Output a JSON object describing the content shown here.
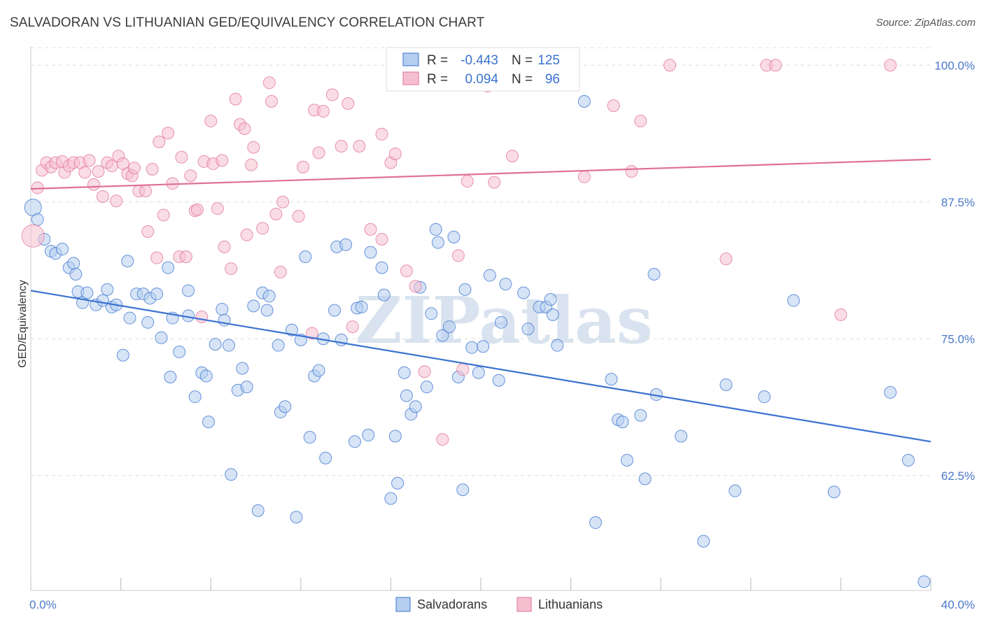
{
  "title": "SALVADORAN VS LITHUANIAN GED/EQUIVALENCY CORRELATION CHART",
  "source": "Source: ZipAtlas.com",
  "watermark": "ZIPatlas",
  "colors": {
    "blue": "#3a72d0",
    "blue_fill": "#b5cdee",
    "pink": "#e07098",
    "pink_fill": "#f5bfd0",
    "axis_label": "#4a78c8",
    "grid": "#dddddd"
  },
  "legend": {
    "rows": [
      {
        "r_label": "R =",
        "r_value": "-0.443",
        "n_label": "N =",
        "n_value": "125"
      },
      {
        "r_label": "R =",
        "r_value": "0.094",
        "n_label": "N =",
        "n_value": "96"
      }
    ]
  },
  "chart_data": {
    "type": "scatter",
    "title": "SALVADORAN VS LITHUANIAN GED/EQUIVALENCY CORRELATION CHART",
    "xlabel": "",
    "ylabel": "GED/Equivalency",
    "xlim": [
      0,
      40
    ],
    "ylim": [
      52,
      102
    ],
    "x_tick_labels": [
      "0.0%",
      "40.0%"
    ],
    "y_ticks": [
      62.5,
      75.0,
      87.5,
      100.0
    ],
    "y_tick_labels": [
      "62.5%",
      "75.0%",
      "87.5%",
      "100.0%"
    ],
    "grid": "horizontal dashed",
    "series": [
      {
        "name": "Salvadorans",
        "trend": {
          "x": [
            0,
            40
          ],
          "y": [
            79.4,
            65.6
          ]
        },
        "points": [
          [
            0.1,
            87.0
          ],
          [
            0.3,
            85.9
          ],
          [
            0.6,
            84.1
          ],
          [
            0.9,
            83.0
          ],
          [
            1.1,
            82.8
          ],
          [
            1.4,
            83.2
          ],
          [
            1.7,
            81.5
          ],
          [
            1.9,
            81.9
          ],
          [
            2.0,
            80.9
          ],
          [
            2.1,
            79.3
          ],
          [
            2.3,
            78.3
          ],
          [
            2.5,
            79.2
          ],
          [
            2.9,
            78.1
          ],
          [
            3.2,
            78.5
          ],
          [
            3.4,
            79.5
          ],
          [
            3.6,
            77.9
          ],
          [
            3.8,
            78.1
          ],
          [
            4.1,
            73.5
          ],
          [
            4.3,
            82.1
          ],
          [
            4.4,
            76.9
          ],
          [
            4.7,
            79.1
          ],
          [
            5.0,
            79.1
          ],
          [
            5.2,
            76.5
          ],
          [
            5.3,
            78.7
          ],
          [
            5.6,
            79.1
          ],
          [
            5.8,
            75.1
          ],
          [
            6.1,
            81.5
          ],
          [
            6.2,
            71.5
          ],
          [
            6.3,
            76.9
          ],
          [
            6.6,
            73.8
          ],
          [
            7.0,
            79.4
          ],
          [
            7.0,
            77.1
          ],
          [
            7.3,
            69.7
          ],
          [
            7.6,
            71.9
          ],
          [
            7.8,
            71.6
          ],
          [
            7.9,
            67.4
          ],
          [
            8.2,
            74.5
          ],
          [
            8.5,
            77.7
          ],
          [
            8.6,
            76.7
          ],
          [
            8.8,
            74.4
          ],
          [
            8.9,
            62.6
          ],
          [
            9.2,
            70.3
          ],
          [
            9.4,
            72.3
          ],
          [
            9.6,
            70.6
          ],
          [
            9.9,
            78.0
          ],
          [
            10.1,
            59.3
          ],
          [
            10.3,
            79.2
          ],
          [
            10.5,
            77.6
          ],
          [
            10.6,
            78.9
          ],
          [
            11.0,
            74.4
          ],
          [
            11.1,
            68.3
          ],
          [
            11.3,
            68.8
          ],
          [
            11.6,
            75.8
          ],
          [
            11.8,
            58.7
          ],
          [
            12.0,
            74.9
          ],
          [
            12.2,
            82.5
          ],
          [
            12.4,
            66.0
          ],
          [
            12.6,
            71.6
          ],
          [
            12.8,
            72.1
          ],
          [
            13.0,
            75.0
          ],
          [
            13.1,
            64.1
          ],
          [
            13.5,
            77.6
          ],
          [
            13.6,
            83.4
          ],
          [
            13.8,
            74.9
          ],
          [
            14.0,
            83.6
          ],
          [
            14.4,
            65.6
          ],
          [
            14.5,
            77.8
          ],
          [
            14.7,
            77.9
          ],
          [
            15.0,
            66.2
          ],
          [
            15.1,
            82.9
          ],
          [
            15.6,
            81.5
          ],
          [
            15.7,
            79.0
          ],
          [
            16.0,
            60.4
          ],
          [
            16.2,
            66.1
          ],
          [
            16.3,
            61.8
          ],
          [
            16.6,
            71.9
          ],
          [
            16.7,
            69.8
          ],
          [
            16.9,
            68.1
          ],
          [
            17.1,
            68.8
          ],
          [
            17.3,
            79.7
          ],
          [
            17.6,
            70.6
          ],
          [
            17.8,
            77.3
          ],
          [
            18.0,
            85.0
          ],
          [
            18.1,
            83.8
          ],
          [
            18.3,
            75.3
          ],
          [
            18.6,
            76.1
          ],
          [
            18.8,
            84.3
          ],
          [
            19.0,
            71.5
          ],
          [
            19.2,
            61.2
          ],
          [
            19.3,
            79.5
          ],
          [
            19.6,
            74.2
          ],
          [
            19.9,
            71.9
          ],
          [
            20.1,
            74.3
          ],
          [
            20.4,
            80.8
          ],
          [
            20.8,
            71.2
          ],
          [
            20.9,
            76.5
          ],
          [
            21.1,
            80.0
          ],
          [
            21.9,
            79.2
          ],
          [
            22.1,
            75.9
          ],
          [
            22.6,
            77.9
          ],
          [
            22.9,
            77.9
          ],
          [
            23.1,
            78.6
          ],
          [
            23.2,
            77.2
          ],
          [
            23.4,
            74.4
          ],
          [
            24.6,
            96.7
          ],
          [
            25.1,
            58.2
          ],
          [
            25.8,
            71.3
          ],
          [
            26.1,
            67.6
          ],
          [
            26.3,
            67.4
          ],
          [
            26.5,
            63.9
          ],
          [
            27.1,
            68.0
          ],
          [
            27.3,
            62.2
          ],
          [
            27.7,
            80.9
          ],
          [
            27.8,
            69.9
          ],
          [
            28.9,
            66.1
          ],
          [
            29.9,
            56.5
          ],
          [
            30.9,
            70.8
          ],
          [
            31.3,
            61.1
          ],
          [
            32.6,
            69.7
          ],
          [
            33.9,
            78.5
          ],
          [
            35.7,
            61.0
          ],
          [
            38.2,
            70.1
          ],
          [
            39.0,
            63.9
          ],
          [
            39.7,
            52.8
          ]
        ]
      },
      {
        "name": "Lithuanians",
        "trend": {
          "x": [
            0,
            40
          ],
          "y": [
            88.7,
            91.4
          ]
        },
        "points": [
          [
            0.1,
            84.4
          ],
          [
            0.3,
            88.8
          ],
          [
            0.5,
            90.4
          ],
          [
            0.7,
            91.1
          ],
          [
            0.9,
            90.7
          ],
          [
            1.1,
            91.1
          ],
          [
            1.4,
            91.2
          ],
          [
            1.5,
            90.2
          ],
          [
            1.7,
            90.8
          ],
          [
            1.9,
            91.1
          ],
          [
            2.2,
            91.1
          ],
          [
            2.4,
            90.2
          ],
          [
            2.6,
            91.3
          ],
          [
            2.8,
            89.1
          ],
          [
            3.0,
            90.3
          ],
          [
            3.2,
            88.0
          ],
          [
            3.4,
            91.1
          ],
          [
            3.6,
            90.8
          ],
          [
            3.8,
            87.6
          ],
          [
            3.9,
            91.7
          ],
          [
            4.1,
            91.0
          ],
          [
            4.3,
            90.1
          ],
          [
            4.5,
            89.9
          ],
          [
            4.6,
            90.6
          ],
          [
            4.8,
            88.5
          ],
          [
            5.1,
            88.5
          ],
          [
            5.2,
            84.8
          ],
          [
            5.4,
            90.5
          ],
          [
            5.6,
            82.4
          ],
          [
            5.7,
            93.0
          ],
          [
            5.9,
            86.3
          ],
          [
            6.1,
            93.8
          ],
          [
            6.3,
            89.2
          ],
          [
            6.6,
            82.5
          ],
          [
            6.7,
            91.6
          ],
          [
            6.9,
            82.5
          ],
          [
            7.1,
            89.9
          ],
          [
            7.3,
            86.7
          ],
          [
            7.4,
            86.8
          ],
          [
            7.6,
            77.0
          ],
          [
            7.7,
            91.2
          ],
          [
            8.0,
            94.9
          ],
          [
            8.1,
            91.0
          ],
          [
            8.3,
            86.9
          ],
          [
            8.5,
            91.3
          ],
          [
            8.6,
            83.4
          ],
          [
            8.9,
            81.4
          ],
          [
            9.1,
            96.9
          ],
          [
            9.3,
            94.6
          ],
          [
            9.5,
            94.2
          ],
          [
            9.6,
            84.5
          ],
          [
            9.8,
            90.9
          ],
          [
            9.9,
            92.5
          ],
          [
            10.3,
            85.1
          ],
          [
            10.6,
            98.4
          ],
          [
            10.7,
            96.7
          ],
          [
            10.9,
            86.4
          ],
          [
            11.1,
            81.1
          ],
          [
            11.2,
            87.5
          ],
          [
            11.9,
            86.2
          ],
          [
            12.1,
            90.7
          ],
          [
            12.5,
            75.5
          ],
          [
            12.6,
            95.9
          ],
          [
            12.8,
            92.0
          ],
          [
            13.0,
            95.8
          ],
          [
            13.4,
            97.3
          ],
          [
            13.8,
            92.6
          ],
          [
            14.1,
            96.5
          ],
          [
            14.3,
            76.1
          ],
          [
            14.6,
            92.6
          ],
          [
            15.1,
            85.0
          ],
          [
            15.6,
            84.1
          ],
          [
            15.6,
            93.7
          ],
          [
            16.0,
            91.1
          ],
          [
            16.2,
            91.9
          ],
          [
            16.7,
            81.2
          ],
          [
            17.1,
            79.8
          ],
          [
            17.5,
            72.0
          ],
          [
            18.3,
            65.8
          ],
          [
            19.0,
            82.6
          ],
          [
            19.2,
            72.2
          ],
          [
            19.4,
            89.4
          ],
          [
            20.3,
            98.1
          ],
          [
            20.6,
            89.3
          ],
          [
            21.4,
            91.7
          ],
          [
            22.3,
            100.0
          ],
          [
            24.6,
            89.8
          ],
          [
            25.9,
            96.3
          ],
          [
            26.7,
            90.3
          ],
          [
            27.1,
            94.9
          ],
          [
            28.4,
            100.0
          ],
          [
            30.9,
            82.3
          ],
          [
            32.7,
            100.0
          ],
          [
            33.1,
            100.0
          ],
          [
            36.0,
            77.2
          ],
          [
            38.2,
            100.0
          ]
        ]
      }
    ]
  },
  "bottom_legend": [
    "Salvadorans",
    "Lithuanians"
  ]
}
